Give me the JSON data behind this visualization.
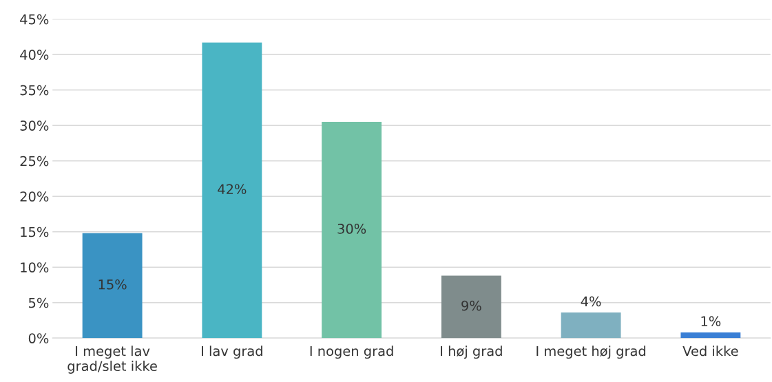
{
  "chart_data": {
    "type": "bar",
    "categories": [
      "I meget lav grad/slet ikke",
      "I lav grad",
      "I nogen grad",
      "I høj grad",
      "I meget høj grad",
      "Ved ikke"
    ],
    "values": [
      14.8,
      41.7,
      30.5,
      8.8,
      3.6,
      0.8
    ],
    "value_labels": [
      "15%",
      "42%",
      "30%",
      "9%",
      "4%",
      "1%"
    ],
    "colors": [
      "#3a93c3",
      "#4ab5c4",
      "#72c2a6",
      "#7f8c8c",
      "#7fb0c0",
      "#3a7fd5"
    ],
    "ylim": [
      0,
      45
    ],
    "yticks": [
      {
        "value": 0,
        "label": "0%"
      },
      {
        "value": 5,
        "label": "5%"
      },
      {
        "value": 10,
        "label": "10%"
      },
      {
        "value": 15,
        "label": "15%"
      },
      {
        "value": 20,
        "label": "20%"
      },
      {
        "value": 25,
        "label": "25%"
      },
      {
        "value": 30,
        "label": "30%"
      },
      {
        "value": 35,
        "label": "35%"
      },
      {
        "value": 40,
        "label": "40%"
      },
      {
        "value": 45,
        "label": "45%"
      }
    ],
    "grid": "y"
  }
}
